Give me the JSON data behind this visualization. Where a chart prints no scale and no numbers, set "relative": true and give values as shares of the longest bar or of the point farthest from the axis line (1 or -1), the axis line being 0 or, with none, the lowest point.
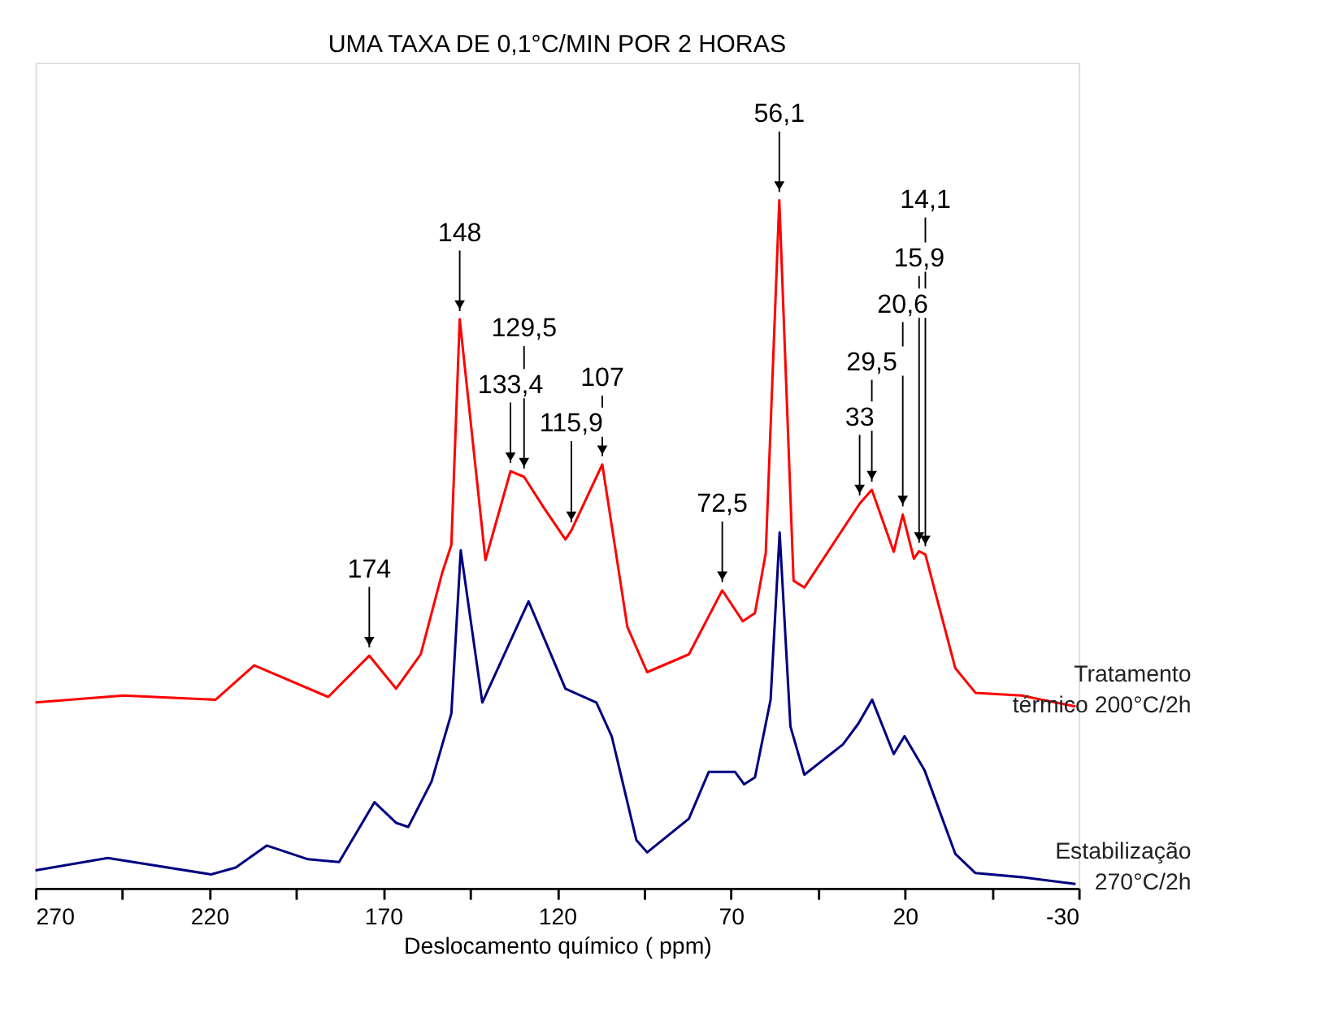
{
  "chart_data": {
    "type": "line",
    "title": "UMA TAXA DE 0,1°C/MIN POR 2 HORAS",
    "xlabel": "Deslocamento químico  ( ppm)",
    "relative": true,
    "grid": false,
    "tick_labels": "x",
    "marker": "none",
    "line_style": "solid",
    "xlim": [
      270,
      -30
    ],
    "xticks": [
      270,
      {
        "value": 245,
        "label": null
      },
      220,
      {
        "value": 195,
        "label": null
      },
      170,
      {
        "value": 145,
        "label": null
      },
      120,
      {
        "value": 95,
        "label": null
      },
      70,
      {
        "value": 45,
        "label": null
      },
      20,
      {
        "value": -5,
        "label": null
      },
      -30
    ],
    "series": [
      {
        "name": "Tratamento térmico 200°C/2h",
        "color": "#ff0000",
        "x": [
          270,
          244.7,
          218.2,
          207.1,
          185.8,
          174,
          166.3,
          159.2,
          153.0,
          150.4,
          148,
          140.6,
          133.4,
          129.5,
          123.8,
          117.6,
          115.9,
          107,
          99.8,
          94.1,
          82.1,
          72.5,
          66.6,
          63.1,
          60.0,
          56.1,
          52.0,
          48.9,
          33,
          29.5,
          23.2,
          20.6,
          17.4,
          15.9,
          14.1,
          5.5,
          -0.3,
          -13.6,
          -29.1
        ],
        "values": [
          0.27,
          0.28,
          0.274,
          0.324,
          0.278,
          0.338,
          0.29,
          0.34,
          0.459,
          0.499,
          0.827,
          0.477,
          0.606,
          0.598,
          0.553,
          0.507,
          0.52,
          0.616,
          0.38,
          0.314,
          0.34,
          0.433,
          0.388,
          0.4,
          0.487,
          1.0,
          0.447,
          0.437,
          0.559,
          0.579,
          0.489,
          0.543,
          0.479,
          0.49,
          0.485,
          0.32,
          0.284,
          0.28,
          0.264
        ]
      },
      {
        "name": "Estabilização 270°C/2h",
        "color": "#000080",
        "x": [
          270,
          249.2,
          219.5,
          212.4,
          203.5,
          191.6,
          182.7,
          172.5,
          166.3,
          162.8,
          156.1,
          150.4,
          147.7,
          141.5,
          128.2,
          117.6,
          108.7,
          104.3,
          97.2,
          94.1,
          82.1,
          76.4,
          68.8,
          66.2,
          63.1,
          58.6,
          56.0,
          52.9,
          48.9,
          37.8,
          33.4,
          29.4,
          23.2,
          20.1,
          14.3,
          5.5,
          -0.3,
          -13.6,
          -29.1
        ],
        "values": [
          0.026,
          0.044,
          0.02,
          0.03,
          0.062,
          0.042,
          0.038,
          0.125,
          0.095,
          0.089,
          0.155,
          0.254,
          0.491,
          0.27,
          0.417,
          0.29,
          0.27,
          0.221,
          0.07,
          0.052,
          0.101,
          0.169,
          0.169,
          0.151,
          0.161,
          0.274,
          0.517,
          0.235,
          0.165,
          0.209,
          0.239,
          0.274,
          0.195,
          0.221,
          0.171,
          0.05,
          0.022,
          0.016,
          0.006
        ]
      }
    ],
    "annotations": [
      {
        "text": "174",
        "x": 174,
        "y": 0.338
      },
      {
        "text": "148",
        "x": 148,
        "y": 0.827
      },
      {
        "text": "133,4",
        "x": 133.4,
        "y": 0.606
      },
      {
        "text": "129,5",
        "x": 129.5,
        "y": 0.598
      },
      {
        "text": "115,9",
        "x": 115.9,
        "y": 0.52
      },
      {
        "text": "107",
        "x": 107,
        "y": 0.616
      },
      {
        "text": "72,5",
        "x": 72.5,
        "y": 0.433
      },
      {
        "text": "56,1",
        "x": 56.1,
        "y": 1.0
      },
      {
        "text": "33",
        "x": 33,
        "y": 0.559
      },
      {
        "text": "29,5",
        "x": 29.5,
        "y": 0.579
      },
      {
        "text": "20,6",
        "x": 20.6,
        "y": 0.543
      },
      {
        "text": "15,9",
        "x": 15.9,
        "y": 0.49
      },
      {
        "text": "14,1",
        "x": 14.1,
        "y": 0.485
      }
    ]
  }
}
